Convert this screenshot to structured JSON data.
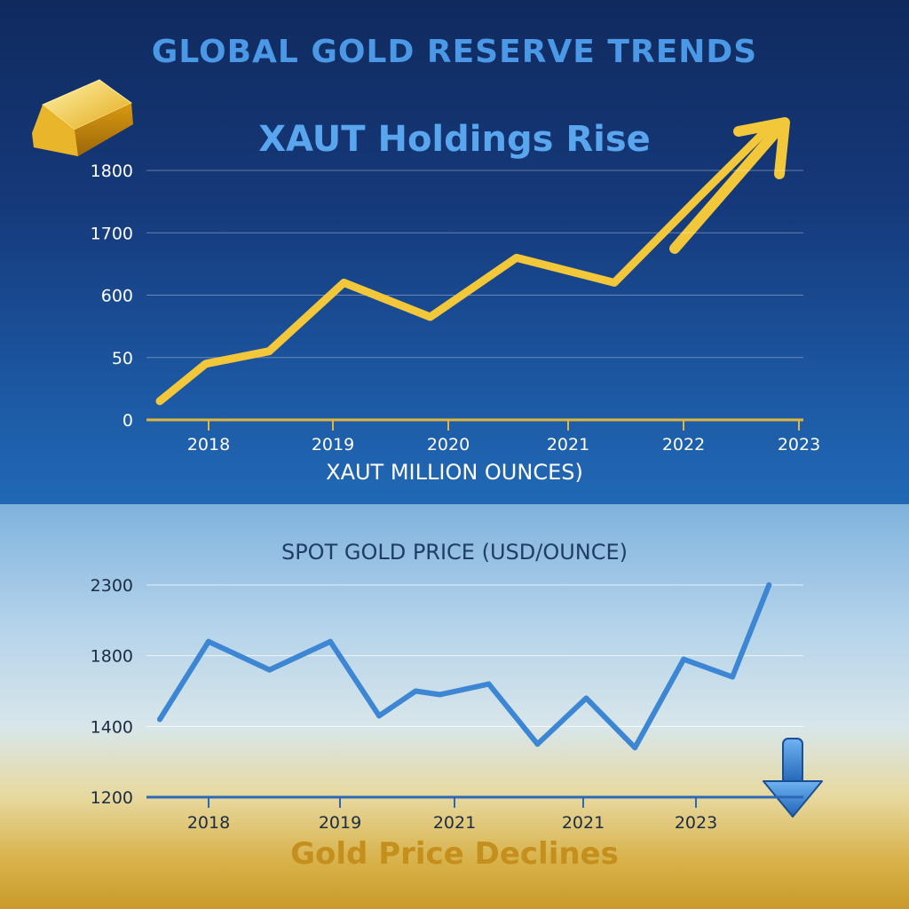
{
  "title": "GLOBAL GOLD RESERVE TRENDS",
  "top_subtitle": "XAUT Holdings Rise",
  "bottom_caption": "Gold Price Declines",
  "colors": {
    "top_line": "#f2c73a",
    "bottom_line": "#3c86d3",
    "title": "#4a98e6",
    "caption": "#c48f1c"
  },
  "icons": [
    "gold-bar-icon",
    "up-arrow-icon",
    "down-arrow-icon"
  ],
  "chart_data": [
    {
      "type": "line",
      "title": "XAUT Holdings Rise",
      "xlabel": "XAUT MILLION OUNCES)",
      "ylabel": "",
      "x_tick_labels": [
        "2018",
        "2019",
        "2020",
        "2021",
        "2022",
        "2023"
      ],
      "y_tick_labels": [
        "0",
        "50",
        "600",
        "1700",
        "1800"
      ],
      "grid": true,
      "series": [
        {
          "x": [
            2017.6,
            2018.0,
            2018.55,
            2019.2,
            2019.95,
            2020.7,
            2021.55,
            2022.3,
            2022.9
          ],
          "y_approx_gridline_index": [
            0.3,
            0.9,
            1.1,
            2.2,
            1.65,
            2.6,
            2.2,
            3.6,
            4.7
          ]
        }
      ]
    },
    {
      "type": "line",
      "title": "",
      "xlabel": "SPOT GOLD PRICE (USD/OUNCE)",
      "ylabel": "",
      "x_tick_labels": [
        "2018",
        "2019",
        "2021",
        "2021",
        "2023"
      ],
      "y_tick_labels": [
        "1200",
        "1400",
        "1800",
        "2300"
      ],
      "grid": true,
      "series": [
        {
          "x": [
            2017.8,
            2018.2,
            2018.7,
            2019.2,
            2019.6,
            2019.9,
            2020.1,
            2020.5,
            2020.9,
            2021.3,
            2021.7,
            2022.1,
            2022.5,
            2022.8
          ],
          "y_approx_gridline_index": [
            1.1,
            2.2,
            1.8,
            2.2,
            1.15,
            1.5,
            1.45,
            1.6,
            0.75,
            1.4,
            0.7,
            1.95,
            1.7,
            3.0
          ]
        }
      ]
    }
  ]
}
